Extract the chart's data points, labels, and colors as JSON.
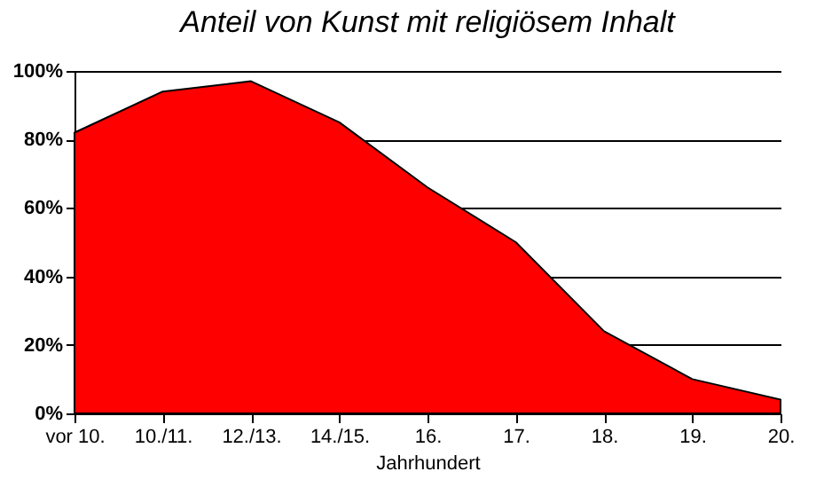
{
  "chart_data": {
    "type": "area",
    "title": "Anteil von Kunst mit religiösem Inhalt",
    "xlabel": "Jahrhundert",
    "categories": [
      "vor 10.",
      "10./11.",
      "12./13.",
      "14./15.",
      "16.",
      "17.",
      "18.",
      "19.",
      "20."
    ],
    "values": [
      82,
      94,
      97,
      85,
      66,
      50,
      24,
      10,
      4
    ],
    "color": "#ff0000",
    "ylim": [
      0,
      100
    ],
    "yticks": [
      {
        "value": 0,
        "label": "0%"
      },
      {
        "value": 20,
        "label": "20%"
      },
      {
        "value": 40,
        "label": "40%"
      },
      {
        "value": 60,
        "label": "60%"
      },
      {
        "value": 80,
        "label": "80%"
      },
      {
        "value": 100,
        "label": "100%"
      }
    ],
    "grid": "y"
  }
}
